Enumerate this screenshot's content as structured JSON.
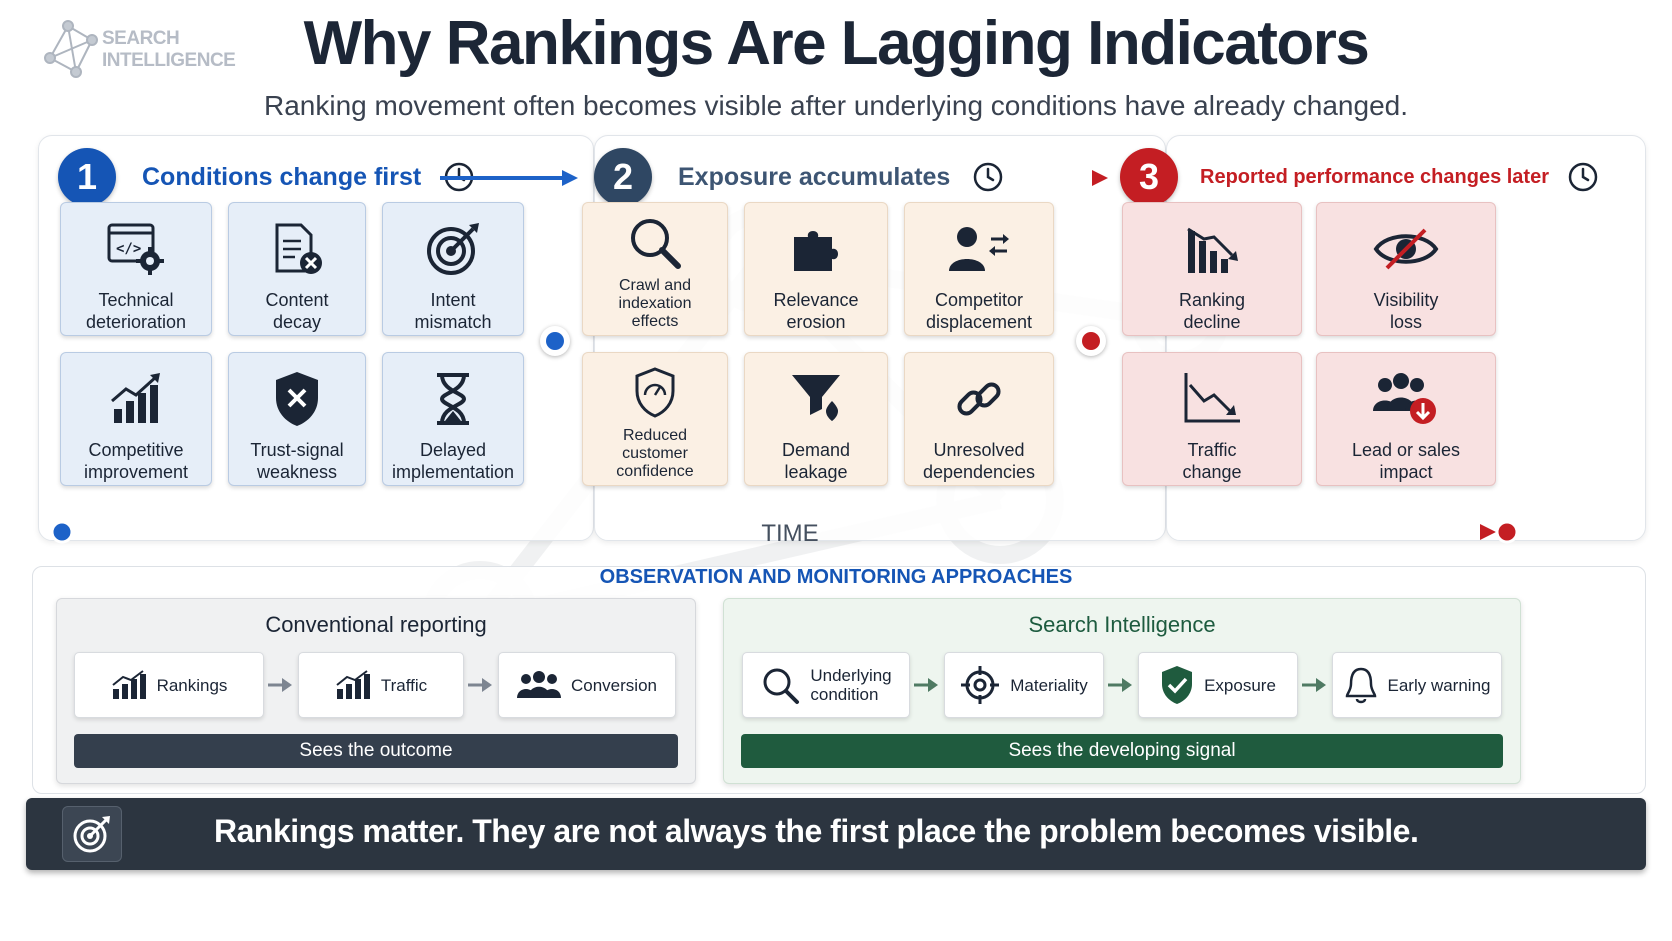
{
  "logo": {
    "line1": "SEARCH",
    "line2": "INTELLIGENCE"
  },
  "title": "Why Rankings Are Lagging Indicators",
  "subtitle": "Ranking movement often becomes visible after underlying conditions have already changed.",
  "stages": [
    {
      "number": "1",
      "label": "Conditions change first",
      "cards": [
        {
          "label": "Technical\ndeterioration",
          "icon": "code-gear-icon"
        },
        {
          "label": "Content\ndecay",
          "icon": "document-x-icon"
        },
        {
          "label": "Intent\nmismatch",
          "icon": "target-icon"
        },
        {
          "label": "Competitive\nimprovement",
          "icon": "bar-growth-icon"
        },
        {
          "label": "Trust-signal\nweakness",
          "icon": "shield-x-icon"
        },
        {
          "label": "Delayed\nimplementation",
          "icon": "hourglass-icon"
        }
      ]
    },
    {
      "number": "2",
      "label": "Exposure accumulates",
      "cards": [
        {
          "label": "Crawl and\nindexation\neffects",
          "icon": "magnifier-icon"
        },
        {
          "label": "Relevance\nerosion",
          "icon": "puzzle-icon"
        },
        {
          "label": "Competitor\ndisplacement",
          "icon": "person-swap-icon"
        },
        {
          "label": "Reduced\ncustomer\nconfidence",
          "icon": "gauge-shield-icon"
        },
        {
          "label": "Demand\nleakage",
          "icon": "funnel-icon"
        },
        {
          "label": "Unresolved\ndependencies",
          "icon": "chain-link-icon"
        }
      ]
    },
    {
      "number": "3",
      "label": "Reported performance changes later",
      "cards": [
        {
          "label": "Ranking\ndecline",
          "icon": "bar-decline-icon"
        },
        {
          "label": "Visibility\nloss",
          "icon": "eye-slash-icon"
        },
        {
          "label": "Traffic\nchange",
          "icon": "line-decline-icon"
        },
        {
          "label": "Lead or sales\nimpact",
          "icon": "group-down-icon"
        }
      ]
    }
  ],
  "timeline_label": "TIME",
  "observation": {
    "title": "OBSERVATION AND MONITORING APPROACHES",
    "conventional": {
      "title": "Conventional reporting",
      "steps": [
        "Rankings",
        "Traffic",
        "Conversion"
      ],
      "bar": "Sees the outcome"
    },
    "intelligence": {
      "title": "Search Intelligence",
      "steps": [
        "Underlying\ncondition",
        "Materiality",
        "Exposure",
        "Early warning"
      ],
      "bar": "Sees the developing signal"
    }
  },
  "footer": "Rankings matter. They are not always the first place the problem becomes visible.",
  "colors": {
    "blue": "#1555b5",
    "slate": "#2f4763",
    "red": "#c41e23",
    "green": "#1f5b3e",
    "dark": "#2c3540"
  }
}
